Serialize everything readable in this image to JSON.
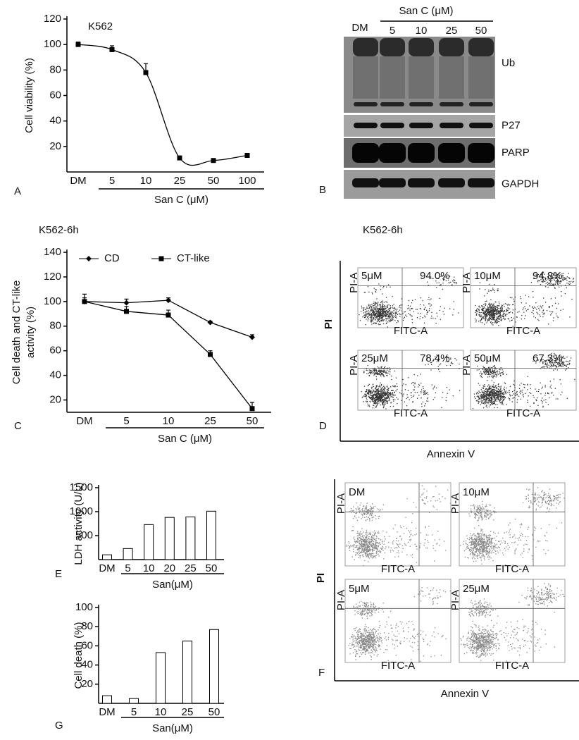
{
  "chart_data": [
    {
      "panel": "A",
      "type": "line",
      "smooth": true,
      "title": "K562",
      "categories": [
        "DM",
        "5",
        "10",
        "25",
        "50",
        "100"
      ],
      "values": [
        100,
        96,
        78,
        11,
        9,
        13
      ],
      "errors": [
        2,
        3,
        7,
        1,
        1,
        1
      ],
      "marker": "square",
      "color": "#000000",
      "ylabel": "Cell viability (%)",
      "xlabel": "San C (μM)",
      "ylim": [
        0,
        120
      ],
      "yticks": [
        20,
        40,
        60,
        80,
        100,
        120
      ]
    },
    {
      "panel": "C",
      "type": "line",
      "smooth": false,
      "title": "K562-6h",
      "categories": [
        "DM",
        "5",
        "10",
        "25",
        "50"
      ],
      "series": [
        {
          "name": "CD",
          "marker": "diamond",
          "color": "#000000",
          "values": [
            100,
            99,
            101,
            83,
            71
          ],
          "errors": [
            3,
            3,
            2,
            1,
            2
          ]
        },
        {
          "name": "CT-like",
          "marker": "square",
          "color": "#000000",
          "values": [
            100,
            92,
            89,
            57,
            13
          ],
          "errors": [
            6,
            4,
            4,
            3,
            5
          ]
        }
      ],
      "ylabel": [
        "Cell death and CT-like",
        "activity (%)"
      ],
      "xlabel": "San C (μM)",
      "ylim": [
        10,
        140
      ],
      "yticks": [
        20,
        40,
        60,
        80,
        100,
        120,
        140
      ]
    },
    {
      "panel": "E",
      "type": "bar",
      "categories": [
        "DM",
        "5",
        "10",
        "20",
        "25",
        "50"
      ],
      "values": [
        100,
        230,
        730,
        880,
        890,
        1010
      ],
      "color": "#ffffff",
      "ylabel": "LDH activity (U/L)",
      "xlabel": "San(μM)",
      "ylim": [
        0,
        1500
      ],
      "yticks": [
        500,
        1000,
        1500
      ]
    },
    {
      "panel": "G",
      "type": "bar",
      "categories": [
        "DM",
        "5",
        "10",
        "25",
        "50"
      ],
      "values": [
        8,
        5,
        53,
        65,
        77
      ],
      "color": "#ffffff",
      "ylabel": "Cell death (%)",
      "xlabel": "San(μM)",
      "ylim": [
        0,
        100
      ],
      "yticks": [
        20,
        40,
        60,
        80,
        100
      ]
    }
  ],
  "blot": {
    "panel": "B",
    "header": "San C (μM)",
    "lanes": [
      "DM",
      "5",
      "10",
      "25",
      "50"
    ],
    "bands": [
      "Ub",
      "P27",
      "PARP",
      "GAPDH"
    ]
  },
  "flow_d": {
    "panel": "D",
    "title": "K562-6h",
    "ylabel": "PI",
    "xlabel": "Annexin V",
    "x_axis": "FITC-A",
    "y_axis": "PI-A",
    "plots": [
      {
        "label": "5μM",
        "percent": "94.0%"
      },
      {
        "label": "10μM",
        "percent": "94.8%"
      },
      {
        "label": "25μM",
        "percent": "78.4%"
      },
      {
        "label": "50μM",
        "percent": "67.3%"
      }
    ]
  },
  "flow_f": {
    "panel": "F",
    "ylabel": "PI",
    "xlabel": "Annexin V",
    "x_axis": "FITC-A",
    "y_axis": "PI-A",
    "plots": [
      {
        "label": "DM"
      },
      {
        "label": "10μM"
      },
      {
        "label": "5μM"
      },
      {
        "label": "25μM"
      }
    ]
  }
}
